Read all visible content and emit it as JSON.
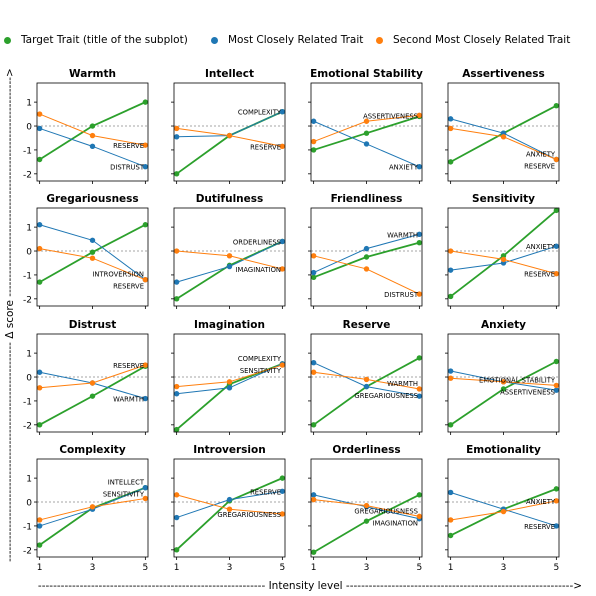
{
  "legend": {
    "target": "Target Trait (title of the subplot)",
    "related": "Most Closely Related Trait",
    "second": "Second Most Closely Related Trait"
  },
  "colors": {
    "target": "#2ca02c",
    "related": "#1f77b4",
    "second": "#ff7f0e",
    "ref": "#888888"
  },
  "axes": {
    "xlabel": "Intensity level",
    "ylabel": "Δ score",
    "xlabel_line": "------------------------------------------------------------ Intensity level ------------------------------------------------------------>",
    "ylabel_line": "---------------------------------------------------------- Δ score ---------------------------------------------------------->"
  },
  "chart_data": {
    "type": "line",
    "x": [
      1,
      3,
      5
    ],
    "xticks": [
      "1",
      "3",
      "5"
    ],
    "ylim": [
      -2.3,
      1.8
    ],
    "yticks": [
      "-2",
      "-1",
      "0",
      "1"
    ],
    "reference_line": 0,
    "panels": [
      {
        "title": "Warmth",
        "target": [
          -1.4,
          0.0,
          1.0
        ],
        "related": [
          -0.1,
          -0.85,
          -1.7
        ],
        "second": [
          0.5,
          -0.4,
          -0.8
        ],
        "related_label": "DISTRUST",
        "second_label": "RESERVE"
      },
      {
        "title": "Intellect",
        "target": [
          -2.0,
          -0.4,
          0.6
        ],
        "related": [
          -0.45,
          -0.4,
          0.6
        ],
        "second": [
          -0.1,
          -0.4,
          -0.85
        ],
        "related_label": "COMPLEXITY",
        "second_label": "RESERVE"
      },
      {
        "title": "Emotional Stability",
        "target": [
          -1.0,
          -0.3,
          0.4
        ],
        "related": [
          0.2,
          -0.75,
          -1.7
        ],
        "second": [
          -0.65,
          0.2,
          0.45
        ],
        "related_label": "ANXIETY",
        "second_label": "ASSERTIVENESS"
      },
      {
        "title": "Assertiveness",
        "target": [
          -1.5,
          -0.3,
          0.85
        ],
        "related": [
          0.3,
          -0.3,
          -1.4
        ],
        "second": [
          -0.1,
          -0.45,
          -1.4
        ],
        "related_label": "ANXIETY",
        "second_label": "RESERVE"
      },
      {
        "title": "Gregariousness",
        "target": [
          -1.3,
          -0.05,
          1.1
        ],
        "related": [
          1.1,
          0.45,
          -1.2
        ],
        "second": [
          0.1,
          -0.3,
          -1.2
        ],
        "related_label": "INTROVERSION",
        "second_label": "RESERVE"
      },
      {
        "title": "Dutifulness",
        "target": [
          -2.0,
          -0.6,
          0.4
        ],
        "related": [
          -1.3,
          -0.65,
          0.4
        ],
        "second": [
          0.0,
          -0.2,
          -0.75
        ],
        "related_label": "ORDERLINESS",
        "second_label": "IMAGINATION"
      },
      {
        "title": "Friendliness",
        "target": [
          -1.1,
          -0.25,
          0.35
        ],
        "related": [
          -0.9,
          0.1,
          0.7
        ],
        "second": [
          -0.2,
          -0.75,
          -1.8
        ],
        "related_label": "WARMTH",
        "second_label": "DISTRUST"
      },
      {
        "title": "Sensitivity",
        "target": [
          -1.9,
          -0.2,
          1.7
        ],
        "related": [
          -0.8,
          -0.5,
          0.2
        ],
        "second": [
          0.0,
          -0.35,
          -0.95
        ],
        "related_label": "ANXIETY",
        "second_label": "RESERVE"
      },
      {
        "title": "Distrust",
        "target": [
          -2.0,
          -0.8,
          0.45
        ],
        "related": [
          0.2,
          -0.25,
          -0.9
        ],
        "second": [
          -0.45,
          -0.25,
          0.5
        ],
        "related_label": "WARMTH",
        "second_label": "RESERVE"
      },
      {
        "title": "Imagination",
        "target": [
          -2.2,
          -0.3,
          0.55
        ],
        "related": [
          -0.7,
          -0.45,
          0.55
        ],
        "second": [
          -0.4,
          -0.2,
          0.5
        ],
        "related_label": "COMPLEXITY",
        "second_label": "SENSITIVITY"
      },
      {
        "title": "Reserve",
        "target": [
          -2.0,
          -0.4,
          0.8
        ],
        "related": [
          0.6,
          -0.4,
          -0.8
        ],
        "second": [
          0.2,
          -0.1,
          -0.5
        ],
        "related_label": "GREGARIOUSNESS",
        "second_label": "WARMTH"
      },
      {
        "title": "Anxiety",
        "target": [
          -2.0,
          -0.5,
          0.65
        ],
        "related": [
          0.25,
          -0.2,
          -0.55
        ],
        "second": [
          -0.05,
          -0.2,
          -0.35
        ],
        "related_label": "ASSERTIVENESS",
        "second_label": "EMOTIONAL STABILITY"
      },
      {
        "title": "Complexity",
        "target": [
          -1.8,
          -0.25,
          0.6
        ],
        "related": [
          -1.0,
          -0.3,
          0.6
        ],
        "second": [
          -0.75,
          -0.2,
          0.15
        ],
        "related_label": "INTELLECT",
        "second_label": "SENSITIVITY"
      },
      {
        "title": "Introversion",
        "target": [
          -2.0,
          0.05,
          1.0
        ],
        "related": [
          -0.65,
          0.1,
          0.45
        ],
        "second": [
          0.3,
          -0.3,
          -0.5
        ],
        "related_label": "RESERVE",
        "second_label": "GREGARIOUSNESS"
      },
      {
        "title": "Orderliness",
        "target": [
          -2.1,
          -0.8,
          0.3
        ],
        "related": [
          0.3,
          -0.2,
          -0.7
        ],
        "second": [
          0.1,
          -0.15,
          -0.6
        ],
        "related_label": "IMAGINATION",
        "second_label": "GREGARIOUSNESS"
      },
      {
        "title": "Emotionality",
        "target": [
          -1.4,
          -0.3,
          0.55
        ],
        "related": [
          0.4,
          -0.3,
          -1.0
        ],
        "second": [
          -0.75,
          -0.4,
          0.05
        ],
        "related_label": "RESERVE",
        "second_label": "ANXIETY"
      }
    ]
  }
}
